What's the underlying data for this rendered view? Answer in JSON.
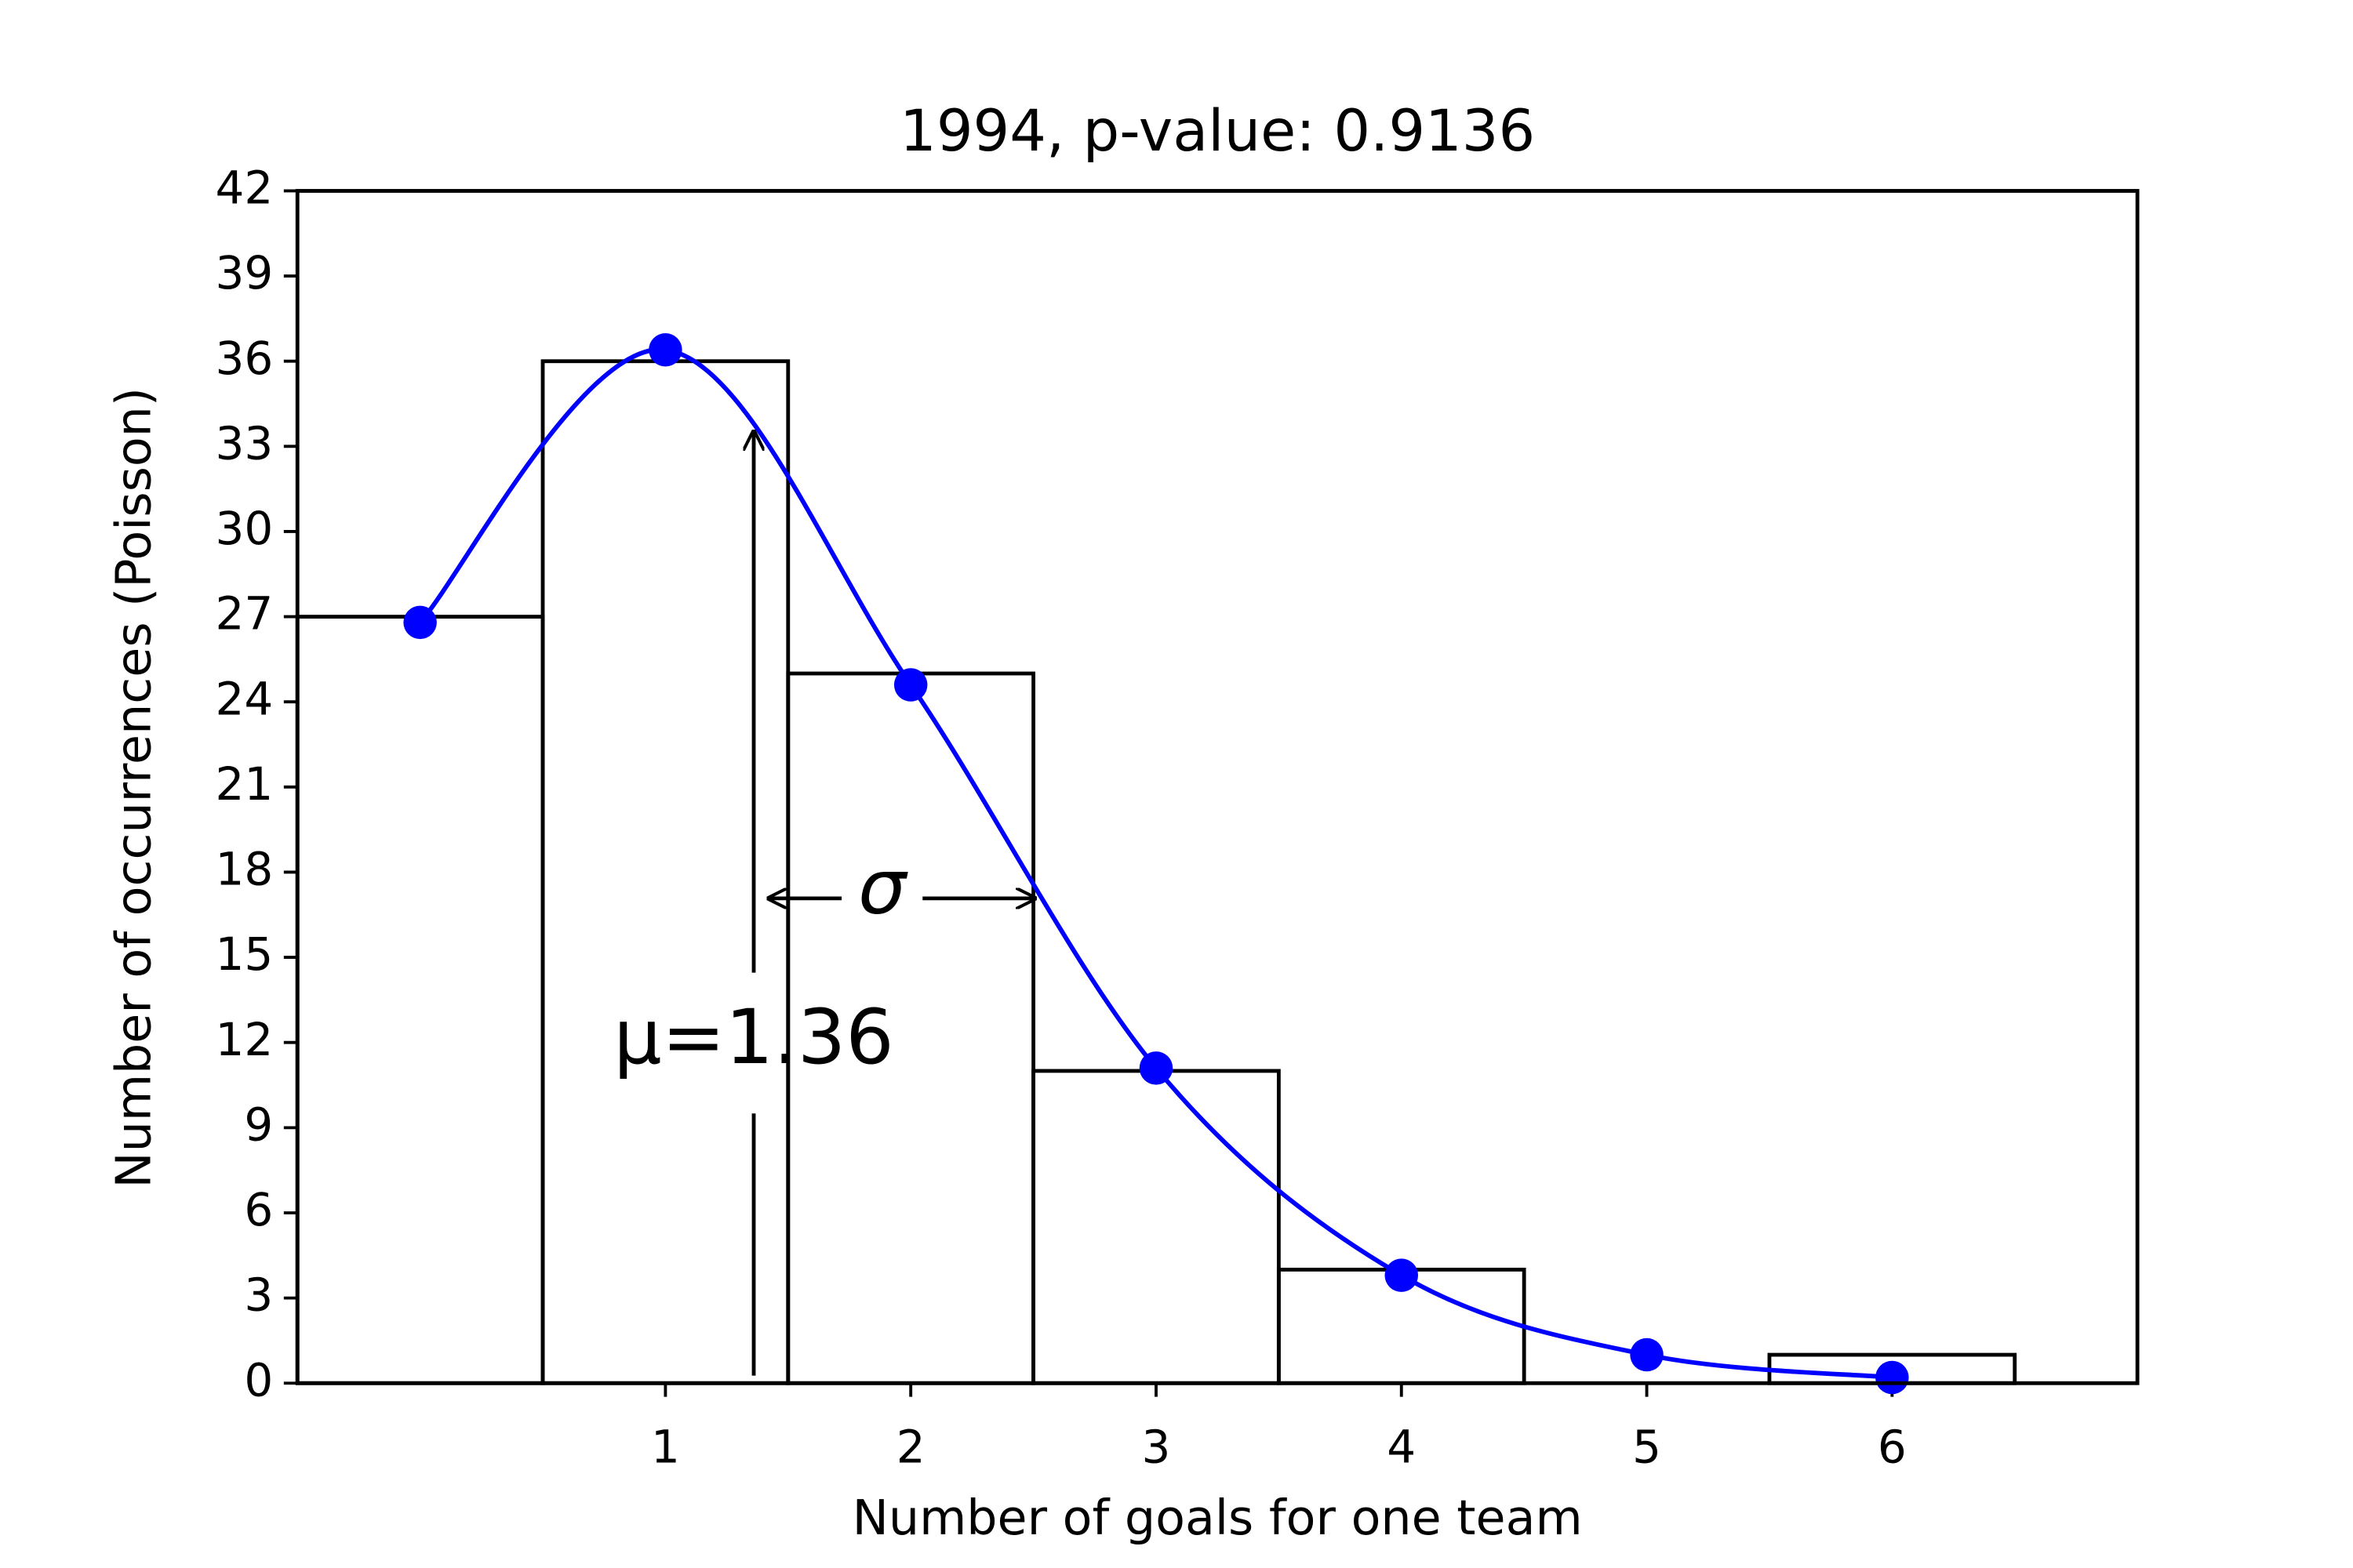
{
  "chart_data": {
    "type": "histogram",
    "title": "1994, p-value: 0.9136",
    "xlabel": "Number of goals for one team",
    "ylabel": "Number of occurrences (Poisson)",
    "bins": [
      -0.5,
      0.5,
      1.5,
      2.5,
      3.5,
      4.5,
      5.5,
      6.5
    ],
    "counts": [
      27,
      36,
      25,
      11,
      4,
      0,
      1
    ],
    "color": "#000000",
    "fit": {
      "type": "line",
      "x": [
        0,
        1,
        2,
        3,
        4,
        5,
        6
      ],
      "values": [
        26.8,
        36.4,
        24.6,
        11.1,
        3.8,
        1.0,
        0.2
      ],
      "color": "#0000ff"
    },
    "annotations": {
      "mu": 1.36,
      "mu_label": "μ=1.36",
      "sigma": 1.17,
      "sigma_label": "σ"
    },
    "xlim": [
      -0.5,
      7
    ],
    "xticks": [
      1,
      2,
      3,
      4,
      5,
      6
    ],
    "ylim": [
      0,
      42
    ],
    "yticks": [
      0,
      3,
      6,
      9,
      12,
      15,
      18,
      21,
      24,
      27,
      30,
      33,
      36,
      39,
      42
    ]
  }
}
